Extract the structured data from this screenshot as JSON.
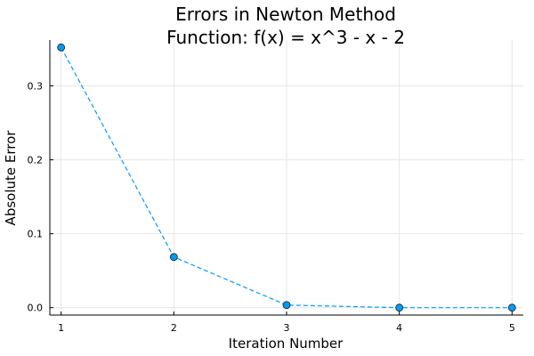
{
  "chart_data": {
    "type": "line",
    "title": "Errors in Newton Method",
    "subtitle": "Function: f(x) = x^3 - x - 2",
    "xlabel": "Iteration Number",
    "ylabel": "Absolute Error",
    "x": [
      1,
      2,
      3,
      4,
      5
    ],
    "series": [
      {
        "values": [
          0.352,
          0.0685,
          0.0035,
          1e-05,
          0.0
        ],
        "color": "#009af9",
        "marker": "circle",
        "line_style": "dashed"
      }
    ],
    "xlim": [
      0.9,
      5.1
    ],
    "ylim": [
      -0.01,
      0.362
    ],
    "xticks": [
      1,
      2,
      3,
      4,
      5
    ],
    "xtick_labels": [
      "1",
      "2",
      "3",
      "4",
      "5"
    ],
    "yticks": [
      0.0,
      0.1,
      0.2,
      0.3
    ],
    "ytick_labels": [
      "0.0",
      "0.1",
      "0.2",
      "0.3"
    ],
    "grid": true,
    "legend": "none"
  }
}
